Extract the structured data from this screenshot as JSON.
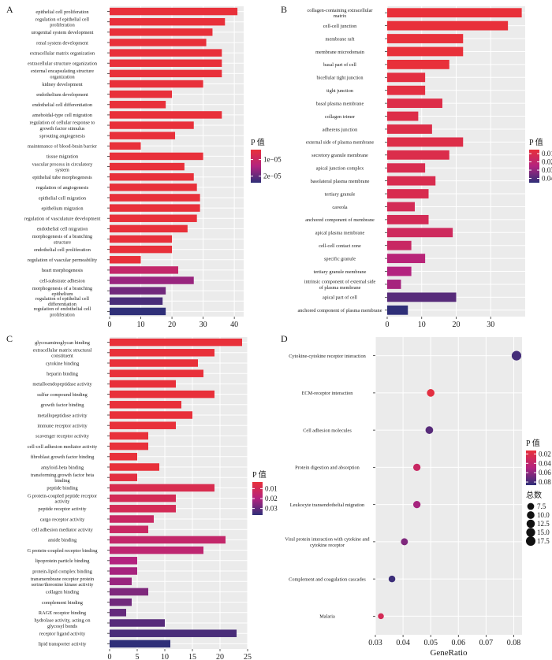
{
  "colors": {
    "low_p": "#e8303a",
    "mid_p": "#b3237f",
    "high_p": "#2f2f78",
    "panel_background": "#ebebeb",
    "gridline": "#ffffff"
  },
  "chart_data": [
    {
      "panel": "A",
      "type": "bar",
      "orientation": "horizontal",
      "legend_title": "P 值",
      "legend_ticks": [
        "1e−05",
        "2e−05"
      ],
      "legend_position": "right",
      "xlim": [
        0,
        43
      ],
      "xticks": [
        0,
        10,
        20,
        30,
        40
      ],
      "categories": [
        "epithelial cell proliferation",
        "regulation of epithelial cell proliferation",
        "urogenital system development",
        "renal system development",
        "extracellular matrix organization",
        "extracellular structure organization",
        "external encapsulating structure organization",
        "kidney development",
        "endothelium development",
        "endothelial cell differentiation",
        "ameboidal-type cell migration",
        "regulation of cellular response to growth factor stimulus",
        "sprouting angiogenesis",
        "maintenance of blood-brain barrier",
        "tissue migration",
        "vascular process in circulatory system",
        "epithelial tube morphogenesis",
        "regulation of angiogenesis",
        "epithelial cell migration",
        "epithelium migration",
        "regulation of vasculature development",
        "endothelial cell migration",
        "morphogenesis of a branching structure",
        "endothelial cell proliferation",
        "regulation of vascular permeability",
        "heart morphogenesis",
        "cell-substrate adhesion",
        "morphogenesis of a branching epithelium",
        "regulation of epithelial cell differentiation",
        "regulation of endothelial cell proliferation"
      ],
      "values": [
        41,
        37,
        33,
        31,
        36,
        36,
        36,
        30,
        20,
        18,
        36,
        27,
        21,
        10,
        30,
        24,
        27,
        28,
        29,
        29,
        28,
        25,
        20,
        20,
        10,
        22,
        27,
        18,
        17,
        18
      ],
      "color_fraction": [
        0,
        0,
        0,
        0,
        0,
        0,
        0,
        0,
        0,
        0,
        0,
        0,
        0,
        0,
        0,
        0,
        0,
        0,
        0,
        0,
        0,
        0,
        0,
        0,
        0,
        0.35,
        0.6,
        0.75,
        0.9,
        1
      ]
    },
    {
      "panel": "B",
      "type": "bar",
      "orientation": "horizontal",
      "legend_title": "P 值",
      "legend_ticks": [
        "0.01",
        "0.02",
        "0.03",
        "0.04"
      ],
      "legend_position": "right",
      "xlim": [
        0,
        40
      ],
      "xticks": [
        0,
        10,
        20,
        30
      ],
      "categories": [
        "collagen-containing extracellular matrix",
        "cell-cell junction",
        "membrane raft",
        "membrane microdomain",
        "basal part of cell",
        "bicellular tight junction",
        "tight junction",
        "basal plasma membrane",
        "collagen trimer",
        "adherens junction",
        "external side of plasma membrane",
        "secretory granule membrane",
        "apical junction complex",
        "basolateral plasma membrane",
        "tertiary granule",
        "caveola",
        "anchored component of membrane",
        "apical plasma membrane",
        "cell-cell contact zone",
        "specific granule",
        "tertiary granule membrane",
        "intrinsic component of external side of plasma membrane",
        "apical part of cell",
        "anchored component of plasma membrane"
      ],
      "values": [
        39,
        35,
        22,
        22,
        18,
        11,
        11,
        16,
        9,
        13,
        22,
        18,
        11,
        14,
        12,
        8,
        12,
        19,
        7,
        11,
        7,
        4,
        20,
        6
      ],
      "color_fraction": [
        0,
        0,
        0,
        0,
        0,
        0.05,
        0.05,
        0.1,
        0.1,
        0.1,
        0.1,
        0.12,
        0.15,
        0.15,
        0.15,
        0.2,
        0.2,
        0.25,
        0.3,
        0.45,
        0.5,
        0.55,
        0.85,
        1
      ]
    },
    {
      "panel": "C",
      "type": "bar",
      "orientation": "horizontal",
      "legend_title": "P 值",
      "legend_ticks": [
        "0.01",
        "0.02",
        "0.03"
      ],
      "legend_position": "right",
      "xlim": [
        0,
        25
      ],
      "xticks": [
        0,
        5,
        10,
        15,
        20,
        25
      ],
      "categories": [
        "glycosaminoglycan binding",
        "extracellular matrix structural constituent",
        "cytokine binding",
        "heparin binding",
        "metalloendopeptidase activity",
        "sulfur compound binding",
        "growth factor binding",
        "metallopeptidase activity",
        "immune receptor activity",
        "scavenger receptor activity",
        "cell-cell adhesion mediator activity",
        "fibroblast growth factor binding",
        "amyloid-beta binding",
        "transforming growth factor beta binding",
        "peptide binding",
        "G protein-coupled peptide receptor activity",
        "peptide receptor activity",
        "cargo receptor activity",
        "cell adhesion mediator activity",
        "amide binding",
        "G protein-coupled receptor binding",
        "lipoprotein particle binding",
        "protein-lipid complex binding",
        "transmembrane receptor protein serine/threonine kinase activity",
        "collagen binding",
        "complement binding",
        "RAGE receptor binding",
        "hydrolase activity, acting on glycosyl bonds",
        "receptor ligand activity",
        "lipid transporter activity"
      ],
      "values": [
        24,
        19,
        16,
        17,
        12,
        19,
        13,
        15,
        12,
        7,
        7,
        5,
        9,
        5,
        19,
        12,
        12,
        8,
        7,
        21,
        17,
        5,
        5,
        4,
        7,
        4,
        3,
        10,
        23,
        11
      ],
      "color_fraction": [
        0,
        0,
        0,
        0,
        0,
        0,
        0,
        0,
        0,
        0,
        0,
        0,
        0,
        0.05,
        0.15,
        0.2,
        0.2,
        0.3,
        0.3,
        0.35,
        0.4,
        0.5,
        0.55,
        0.6,
        0.7,
        0.75,
        0.8,
        0.85,
        0.9,
        1
      ]
    },
    {
      "panel": "D",
      "type": "scatter",
      "xlabel": "GeneRatio",
      "xlim": [
        0.03,
        0.083
      ],
      "xticks": [
        0.03,
        0.04,
        0.05,
        0.06,
        0.07,
        0.08
      ],
      "legend_title": "P 值",
      "legend_ticks": [
        "0.02",
        "0.04",
        "0.06",
        "0.08"
      ],
      "size_legend_title": "总数",
      "size_legend_ticks": [
        "7.5",
        "10.0",
        "12.5",
        "15.0",
        "17.5"
      ],
      "legend_position": "right",
      "categories": [
        "Cytokine-cytokine receptor interaction",
        "ECM-receptor interaction",
        "Cell adhesion molecules",
        "Protein digestion and absorption",
        "Leukocyte transendothelial migration",
        "Viral protein interaction with cytokine and cytokine receptor",
        "Complement and coagulation cascades",
        "Malaria"
      ],
      "x": [
        0.081,
        0.05,
        0.0495,
        0.045,
        0.045,
        0.0405,
        0.036,
        0.032
      ],
      "count": [
        18,
        10,
        10,
        9,
        9,
        8,
        7,
        5
      ],
      "color_fraction": [
        0.92,
        0.05,
        0.85,
        0.3,
        0.55,
        0.7,
        0.95,
        0.2
      ]
    }
  ]
}
